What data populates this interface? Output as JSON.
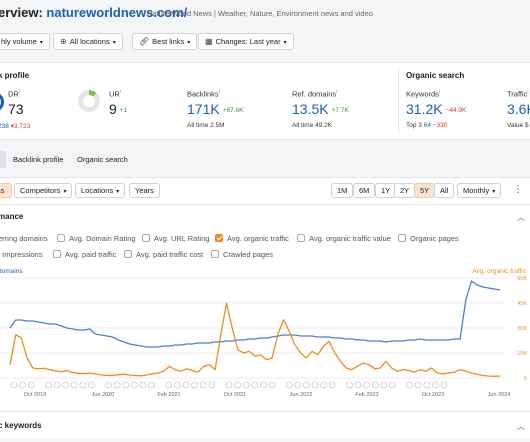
{
  "header": {
    "title_prefix": "erview: ",
    "domain": "natureworldnews.com/",
    "description": "Nature World News | Weather, Nature, Environment news and video"
  },
  "filters": {
    "volume": "hly volume",
    "locations": "All locations",
    "links": "Best links",
    "changes": "Changes: Last year"
  },
  "metrics": {
    "backlink_profile_title": "k profile",
    "organic_search_title": "Organic search",
    "dr": {
      "label": "DR",
      "value": "73",
      "sub_a": "238",
      "sub_b": "▾3,723"
    },
    "ur": {
      "label": "UR",
      "value": "9",
      "delta": "+1"
    },
    "backlinks": {
      "label": "Backlinks",
      "value": "171K",
      "delta": "+67.6K",
      "sub_label": "All time",
      "sub_value": "2.5M"
    },
    "ref_domains": {
      "label": "Ref. domains",
      "value": "13.5K",
      "delta": "+7.7K",
      "sub_label": "All time",
      "sub_value": "49.2K"
    },
    "keywords": {
      "label": "Keywords",
      "value": "31.2K",
      "delta": "−44.9K",
      "sub_label": "Top 3",
      "sub_value": "64",
      "sub_delta": "−330"
    },
    "traffic": {
      "label": "Traffic",
      "value": "3.6K",
      "sub_label": "Value",
      "sub_value": "$"
    }
  },
  "nav_tabs": [
    "Backlink profile",
    "Organic search"
  ],
  "controls": {
    "metrics_tab": "cs",
    "competitors": "Competitors",
    "locations": "Locations",
    "years": "Years",
    "ranges": [
      "1M",
      "6M",
      "1Y",
      "2Y",
      "5Y",
      "All"
    ],
    "selected_range": "5Y",
    "granularity": "Monthly"
  },
  "performance": {
    "title": "mance",
    "checkboxes_row1": [
      {
        "label": "erring domains",
        "checked": false
      },
      {
        "label": "Avg. Domain Rating",
        "checked": false
      },
      {
        "label": "Avg. URL Rating",
        "checked": false
      },
      {
        "label": "Avg. organic traffic",
        "checked": true
      },
      {
        "label": "Avg. organic traffic value",
        "checked": false
      },
      {
        "label": "Organic pages",
        "checked": false
      }
    ],
    "checkboxes_row2": [
      {
        "label": ". Impressions",
        "checked": false
      },
      {
        "label": "Avg. paid traffic",
        "checked": false
      },
      {
        "label": "Avg. paid traffic cost",
        "checked": false
      },
      {
        "label": "Crawled pages",
        "checked": false
      }
    ]
  },
  "chart_data": {
    "type": "line",
    "left_series_label": "domains",
    "right_series_label": "Avg. organic traffic",
    "x_ticks": [
      "Oct 2019",
      "Jun 2020",
      "Feb 2021",
      "Oct 2021",
      "Jun 2022",
      "Feb 2023",
      "Oct 2023",
      "Jun 2024"
    ],
    "y_right_ticks": [
      "60K",
      "45K",
      "30K",
      "15K",
      "0"
    ],
    "y_right_range": [
      0,
      60000
    ],
    "series": [
      {
        "name": "domains",
        "axis": "left",
        "color": "#4a7fd0",
        "values": [
          0.5,
          0.58,
          0.58,
          0.57,
          0.57,
          0.56,
          0.55,
          0.54,
          0.54,
          0.52,
          0.5,
          0.49,
          0.48,
          0.48,
          0.49,
          0.44,
          0.43,
          0.42,
          0.41,
          0.38,
          0.36,
          0.34,
          0.33,
          0.32,
          0.31,
          0.31,
          0.31,
          0.32,
          0.32,
          0.33,
          0.33,
          0.34,
          0.34,
          0.35,
          0.35,
          0.35,
          0.36,
          0.36,
          0.37,
          0.37,
          0.38,
          0.38,
          0.39,
          0.39,
          0.4,
          0.4,
          0.41,
          0.42,
          0.43,
          0.43,
          0.43,
          0.42,
          0.42,
          0.42,
          0.41,
          0.41,
          0.41,
          0.4,
          0.4,
          0.39,
          0.39,
          0.38,
          0.38,
          0.37,
          0.37,
          0.37,
          0.36,
          0.37,
          0.37,
          0.37,
          0.38,
          0.38,
          0.39,
          0.38,
          0.38,
          0.38,
          0.38,
          0.38,
          0.39,
          0.39,
          0.78,
          0.97,
          0.93,
          0.91,
          0.9,
          0.89,
          0.88
        ]
      },
      {
        "name": "Avg. organic traffic",
        "axis": "right",
        "color": "#f08c1c",
        "values": [
          8000,
          26000,
          24000,
          12000,
          6000,
          5500,
          5800,
          5000,
          4200,
          3800,
          4500,
          3200,
          2800,
          2600,
          3000,
          2500,
          1800,
          1600,
          1500,
          2000,
          2200,
          1800,
          1500,
          1300,
          1800,
          2500,
          3000,
          4000,
          7000,
          5000,
          4000,
          5500,
          4500,
          3500,
          7000,
          8000,
          5000,
          26000,
          45000,
          30000,
          17000,
          15000,
          16000,
          13000,
          14000,
          11000,
          12000,
          26000,
          35000,
          28000,
          20000,
          15000,
          12000,
          16000,
          14000,
          19000,
          22000,
          15000,
          10000,
          6000,
          5000,
          7000,
          9000,
          8000,
          5500,
          6000,
          10000,
          6000,
          4000,
          5000,
          4500,
          3500,
          5000,
          4000,
          6000,
          3000,
          2500,
          3000,
          3500,
          5000,
          4200,
          3000,
          2200,
          1500,
          1200,
          1000,
          1200
        ]
      }
    ]
  },
  "organic_keywords_title": "c keywords"
}
